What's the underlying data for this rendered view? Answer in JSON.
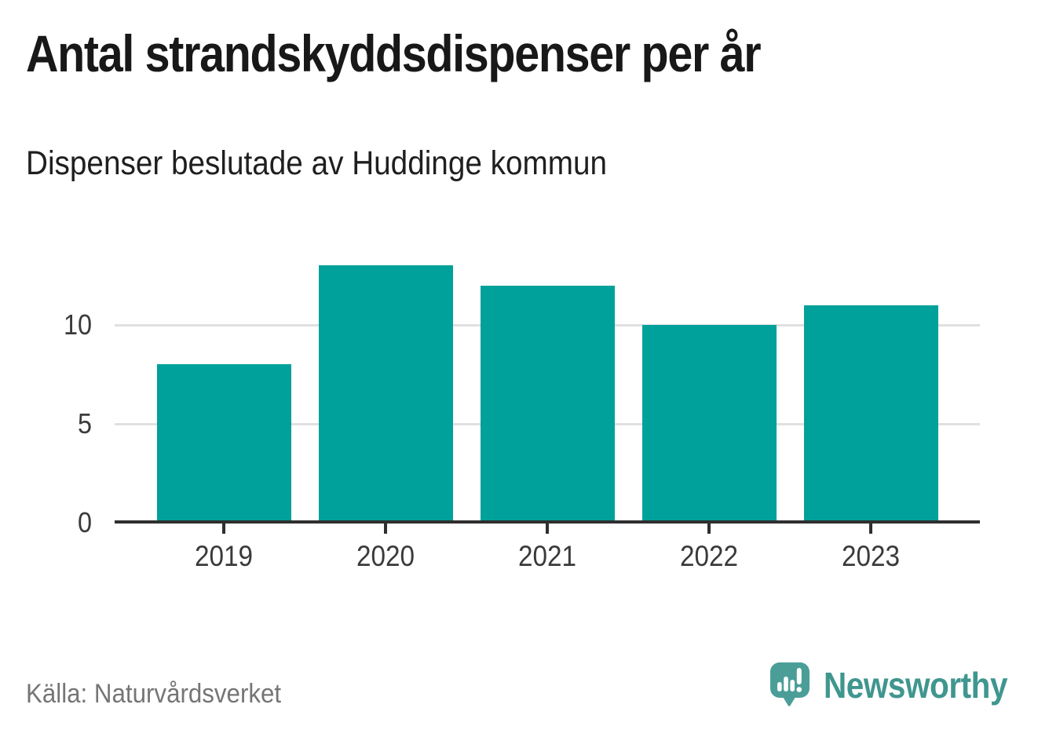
{
  "chart_data": {
    "type": "bar",
    "title": "Antal strandskyddsdispenser per år",
    "subtitle": "Dispenser beslutade av Huddinge kommun",
    "categories": [
      "2019",
      "2020",
      "2021",
      "2022",
      "2023"
    ],
    "values": [
      8,
      13,
      12,
      10,
      11
    ],
    "xlabel": "",
    "ylabel": "",
    "yticks": [
      0,
      5,
      10
    ],
    "ylim": [
      0,
      13
    ],
    "grid": "horizontal",
    "legend": "none",
    "colors": {
      "bar": "#00a19a",
      "gridline": "#e0e0e0",
      "axis": "#2f2f2f",
      "tick_label": "#3a3a3a",
      "title": "#181818"
    }
  },
  "footer": {
    "source": "Källa: Naturvårdsverket",
    "brand": "Newsworthy",
    "brand_color": "#3f968f",
    "brand_icon": "speech-bubble-bar-chart-exclamation",
    "brand_icon_color": "#4b9e98"
  }
}
